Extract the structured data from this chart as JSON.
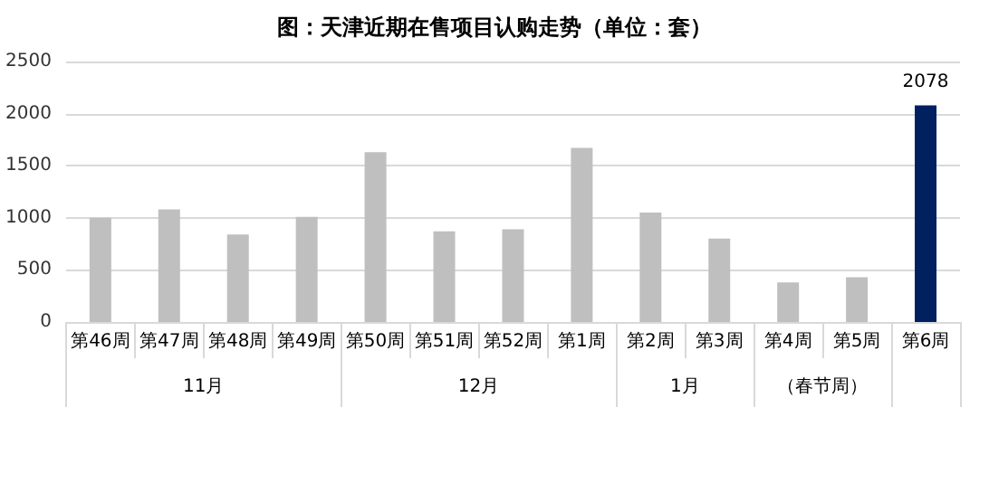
{
  "chart_data": {
    "type": "bar",
    "title": "图：天津近期在售项目认购走势（单位：套）",
    "categories": [
      "第46周",
      "第47周",
      "第48周",
      "第49周",
      "第50周",
      "第51周",
      "第52周",
      "第1周",
      "第2周",
      "第3周",
      "第4周",
      "第5周",
      "第6周"
    ],
    "values": [
      1000,
      1080,
      840,
      1010,
      1630,
      870,
      890,
      1670,
      1050,
      800,
      380,
      430,
      2078
    ],
    "colors": [
      "#bfbfbf",
      "#bfbfbf",
      "#bfbfbf",
      "#bfbfbf",
      "#bfbfbf",
      "#bfbfbf",
      "#bfbfbf",
      "#bfbfbf",
      "#bfbfbf",
      "#bfbfbf",
      "#bfbfbf",
      "#bfbfbf",
      "#002060"
    ],
    "value_labels": [
      null,
      null,
      null,
      null,
      null,
      null,
      null,
      null,
      null,
      null,
      null,
      null,
      "2078"
    ],
    "annotations": [
      "11月",
      "12月",
      "1月",
      "（春节周）"
    ],
    "ylim": [
      0,
      2500
    ],
    "yticks": [
      0,
      500,
      1000,
      1500,
      2000,
      2500
    ],
    "grid": "y"
  }
}
